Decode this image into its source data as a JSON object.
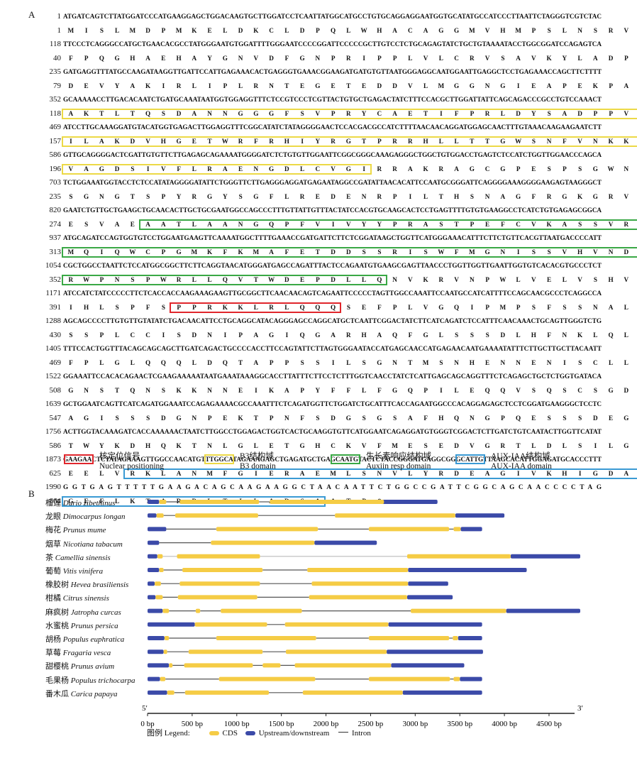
{
  "panel_a": {
    "label": "A",
    "rows": [
      {
        "num": "1",
        "type": "dna",
        "text": "ATGATCAGTCTTATGGATCCCATGAAGGAGCTGGACAAGTGCTTGGATCCTCAATTATGGCATGCCTGTGCAGGAGGAATGGTGCATATGCCATCCCTTAATTCTAGGGTCGTCTAC"
      },
      {
        "num": "1",
        "type": "aa",
        "text": "M I S L M D P M K E L D K C L D P Q L W H A C A G G M V H M P S L N S R V V Y"
      },
      {
        "num": "118",
        "type": "dna",
        "text": "TTCCCTCAGGGCCATGCTGAACACGCCTATGGGAATGTGGATTTTGGGAATCCCCGGATTCCCCCGCTTGTCCTCTGCAGAGTATCTGCTGTAAAATACCTGGCGGATCCAGAGTCA"
      },
      {
        "num": "40",
        "type": "aa",
        "text": "F P Q G H A E H A Y G N V D F G N P R I P P L V L C R V S A V K Y L A D P E S"
      },
      {
        "num": "235",
        "type": "dna",
        "text": "GATGAGGTTTATGCCAAGATAAGGTTGATTCCATTGAGAAACACTGAGGGTGAAACGGAAGATGATGTGTTAATGGGAGGCAATGGAATTGAGGCTCCTGAGAAACCAGCTTCTTTT"
      },
      {
        "num": "79",
        "type": "aa",
        "text": "D E V Y A K I R L I P L R N T E G E T E D D V L M G G N G I E A P E K P A S F"
      },
      {
        "num": "352",
        "type": "dna",
        "text": "GCAAAAACCTTGACACAATCTGATGCAAATAATGGTGGAGGTTTCTCCGTCCCTCGTTACTGTGCTGAGACTATCTTTCCACGCTTGGATTATTCAGCAGACCCGCCTGTCCAAACT"
      },
      {
        "num": "118",
        "type": "aa",
        "text": "A K T L T Q S D A N N G G G F S V P R Y C A E T I F P R L D Y S A D P P V Q T"
      },
      {
        "num": "469",
        "type": "dna",
        "text": "ATCCTTGCAAAGGATGTACATGGTGAGACTTGGAGGTTTCGGCATATCTATAGGGGAACTCCACGACGCCATCTTTTAACAACAGGATGGAGCAACTTTGTAAACAAGAAGAATCTT"
      },
      {
        "num": "157",
        "type": "aa",
        "text": "I L A K D V H G E T W R F R H I Y R G T P R R H L L T T G W S N F V N K K N L"
      },
      {
        "num": "586",
        "type": "dna",
        "text": "GTTGCAGGGGACTCGATTGTGTTCTTGAGAGCAGAAAATGGGGATCTCTGTGTTGGAATTCGGCGGGCAAAGAGGGCTGGCTGTGGACCTGAGTCTCCATCTGGTTGGAACCCAGCA"
      },
      {
        "num": "196",
        "type": "aa",
        "text": "V A G D S I V F L R A E N G D L C V G I R R A K R A G C G P E S P S G W N P A"
      },
      {
        "num": "703",
        "type": "dna",
        "text": "TCTGGAAATGGTACCTCTCCATATAGGGGATATTCTGGGTTCTTGAGGGAGGATGAGAATAGGCCGATATTAACACATTCCAATGCGGGATTCAGGGGAAAGGGGAAGAGTAAGGGCT"
      },
      {
        "num": "235",
        "type": "aa",
        "text": "S G N G T S P Y R G Y S G F L R E D E N R P I L T H S N A G F R G K G R V R A"
      },
      {
        "num": "820",
        "type": "dna",
        "text": "GAATCTGTTGCTGAAGCTGCAACACTTGCTGCGAATGGCCAGCCCTTTGTTATTGTTTACTATCCACGTGCAAGCACTCCTGAGTTTTGTGTGAAGGCCTCATCTGTGAGAGCGGCA"
      },
      {
        "num": "274",
        "type": "aa",
        "text": "E S V A E A A T L A A N G Q P F V I V Y Y P R A S T P E F C V K A S S V R A A"
      },
      {
        "num": "937",
        "type": "dna",
        "text": "ATGCAGATCCAGTGGTGTCCTGGAATGAAGTTCAAAATGGCTTTTGAAACCGATGATTCTTCTCGGATAAGCTGGTTCATGGGAAACATTTCTTCTGTTCACGTTAATGACCCCATT"
      },
      {
        "num": "313",
        "type": "aa",
        "text": "M Q I Q W C P G M K F K M A F E T D D S S R I S W F M G N I S S V H V N D P I"
      },
      {
        "num": "1054",
        "type": "dna",
        "text": "CGCTGGCCTAATTCTCCATGGCGGCTTCTTCAGGTAACATGGGATGAGCCAGATTTACTCCAGAATGTGAAGCGAGTTAACCCTGGTTGGTTGAATTGGTGTCACACGTGCCCTCT"
      },
      {
        "num": "352",
        "type": "aa",
        "text": "R W P N S P W R L L Q V T W D E P D L L Q N V K R V N P W L V E L V S H V P S"
      },
      {
        "num": "1171",
        "type": "dna",
        "text": "ATCCATCTATCCCCCTTCTCACCACCAAGAAAGAAGTTGCGGCTTCAACAACAGTCAGAATTCCCCCTAGTTGGCCAAATTCCAATGCCATCATTTTCCAGCAACGCCCTCAGGCCA"
      },
      {
        "num": "391",
        "type": "aa",
        "text": "I H L S P F S P P R K K L R L Q Q Q S E F P L V G Q I P M P S F S S N A L R P"
      },
      {
        "num": "1288",
        "type": "dna",
        "text": "AGCAGCCCCTTGTGTTGTATATCTGACAACATTCCTGCAGGCATACAGGGAGCCAGGCATGCTCAATTCGGACTATCTTCATCAGATCTCCATTTCAACAAACTGCAGTTGGGTCTG"
      },
      {
        "num": "430",
        "type": "aa",
        "text": "S S P L C C I S D N I P A G I Q G A R H A Q F G L S S S D L H F N K L Q L G L"
      },
      {
        "num": "1405",
        "type": "dna",
        "text": "TTTCCACTGGTTTACAGCAGCAGCTTGATCAGACTGCCCCACCTTCCAGTATTCTTAGTGGGAATACCATGAGCAACCATGAGAACAATGAAAATATTTCTTGCTTGCTTACAATT"
      },
      {
        "num": "469",
        "type": "aa",
        "text": "F P L G L Q Q Q L D Q T A P P S S I L S G N T M S N H E N N E N I S C L L T I"
      },
      {
        "num": "1522",
        "type": "dna",
        "text": "GGAAATTCCACACAGAACTCGAAGAAAAATAATGAAATAAAGGCACCTTATTTCTTCCTCTTTGGTCAACCTATCTCATTGAGCAGCAGGTTTCTCAGAGCTGCTCTGGTGATACA"
      },
      {
        "num": "508",
        "type": "aa",
        "text": "G N S T Q N S K K N N E I K A P Y F F L F G Q P I L E Q Q V S Q S C S G D T"
      },
      {
        "num": "1639",
        "type": "dna",
        "text": "GCTGGAATCAGTTCATCAGATGGAAATCCAGAGAAAACGCCAAATTTCTCAGATGGTTCTGGATCTGCATTTCACCAGAATGGCCCACAGGAGAGCTCCTCGGATGAAGGGCTCCTC"
      },
      {
        "num": "547",
        "type": "aa",
        "text": "A G I S S S D G N P E K T P N F S D G S G S A F H Q N G P Q E S S S D E G L L"
      },
      {
        "num": "1756",
        "type": "dna",
        "text": "ACTTGGTACAAAGATCACCAAAAAACTAATCTTGGCCTGGAGACTGGTCACTGCAAGGTGTTCATGGAATCAGAGGATGTGGGTCGGACTCTTGATCTGTCAATACTTGGTTCATAT"
      },
      {
        "num": "586",
        "type": "aa",
        "text": "T W Y K D H Q K T N L G L E T G H C K V F M E S E D V G R T L D L S I L G S Y"
      },
      {
        "num": "1873",
        "type": "dna",
        "text": "GAAGAACTCTATAGAAAGTTGGCCAACATGTTTGGCATAGAAAGAGCTGAGATGCTGAGCAATGTACTCTACCGGGATGAGGCGGGCATTGTTAAGCACATTGGAGATGCACCCTTT"
      },
      {
        "num": "625",
        "type": "aa",
        "text": "E E L V R K L A N M F G I E R A E M L S N V L Y R D E A G I V K H I G D A P F"
      },
      {
        "num": "1990",
        "type": "dna",
        "text": "GGTGAGTTTTTGAAGACAGCAAGAAGGCTAACAATTCTGGCCGATTCGGCAGCAACCCCTAG"
      },
      {
        "num": "664",
        "type": "aa",
        "text": "G E F L K T A R R L T I L A D S A A T P *"
      }
    ],
    "legend": [
      {
        "cn": "核定位信号",
        "en": "Nuclear positioning",
        "color": "#e0262c"
      },
      {
        "cn": "B3结构域",
        "en": "B3 domain",
        "color": "#ecd946"
      },
      {
        "cn": "生长素响应结构域",
        "en": "Auxiin resp domain",
        "color": "#3aa845"
      },
      {
        "cn": "AUX-IAA结构域",
        "en": "AUX-IAA domain",
        "color": "#3a9ad4"
      }
    ]
  },
  "panel_b": {
    "label": "B",
    "axis": {
      "ticks": [
        "0 bp",
        "500 bp",
        "1000 bp",
        "1500 bp",
        "2000 bp",
        "2500 bp",
        "3000 bp",
        "3500 bp",
        "4000 bp",
        "4500 bp"
      ],
      "tick_values": [
        0,
        500,
        1000,
        1500,
        2000,
        2500,
        3000,
        3500,
        4000,
        4500
      ],
      "max": 4850,
      "left_end": "5′",
      "right_end": "3′"
    },
    "legend": {
      "title": "图例 Legend:",
      "cds": "CDS",
      "utr": "Upstream/downstream",
      "intron": "Intron"
    },
    "colors": {
      "cds": "#f5cc45",
      "utr": "#3b4aa8",
      "intron": "#555555"
    },
    "genes": [
      {
        "cn": "榴莲",
        "latin": "Durio zibethinus",
        "utr": [
          [
            0,
            130
          ],
          [
            1700,
            3250
          ]
        ],
        "cds": [
          [
            130,
            210
          ],
          [
            360,
            1250
          ],
          [
            1370,
            2650
          ]
        ],
        "introns": [
          [
            210,
            360
          ],
          [
            1250,
            1370
          ]
        ],
        "intron_color": "#555555"
      },
      {
        "cn": "龙眼",
        "latin": "Dimocarpus longan",
        "utr": [
          [
            0,
            100
          ],
          [
            3450,
            4000
          ]
        ],
        "cds": [
          [
            100,
            180
          ],
          [
            310,
            1240
          ],
          [
            2100,
            3450
          ]
        ],
        "introns": [
          [
            180,
            310
          ],
          [
            1240,
            2100
          ]
        ],
        "intron_color": "#555555"
      },
      {
        "cn": "梅花",
        "latin": "Prunus mume",
        "utr": [
          [
            0,
            210
          ],
          [
            3510,
            3750
          ]
        ],
        "cds": [
          [
            770,
            1910
          ],
          [
            2480,
            3380
          ],
          [
            3430,
            3510
          ]
        ],
        "introns": [
          [
            210,
            770
          ],
          [
            1910,
            2480
          ],
          [
            3380,
            3430
          ]
        ],
        "intron_color": "#555555"
      },
      {
        "cn": "烟草",
        "latin": "Nicotiana tabacum",
        "utr": [
          [
            0,
            130
          ],
          [
            1870,
            2570
          ]
        ],
        "cds": [
          [
            710,
            1870
          ]
        ],
        "introns": [
          [
            130,
            710
          ]
        ],
        "intron_color": "#555555"
      },
      {
        "cn": "茶",
        "latin": "Camellia sinensis",
        "utr": [
          [
            0,
            110
          ],
          [
            4070,
            4850
          ]
        ],
        "cds": [
          [
            110,
            170
          ],
          [
            330,
            1260
          ],
          [
            2910,
            4070
          ]
        ],
        "introns": [
          [
            170,
            330
          ],
          [
            1260,
            2910
          ]
        ],
        "intron_color": "#bbbbbb"
      },
      {
        "cn": "葡萄",
        "latin": "Vitis vinifera",
        "utr": [
          [
            0,
            130
          ],
          [
            2920,
            4250
          ]
        ],
        "cds": [
          [
            130,
            180
          ],
          [
            390,
            1290
          ],
          [
            1790,
            2920
          ]
        ],
        "introns": [
          [
            180,
            390
          ],
          [
            1290,
            1790
          ]
        ],
        "intron_color": "#555555"
      },
      {
        "cn": "橡胶树",
        "latin": "Hevea brasiliensis",
        "utr": [
          [
            0,
            80
          ],
          [
            2920,
            3370
          ]
        ],
        "cds": [
          [
            80,
            150
          ],
          [
            360,
            1260
          ],
          [
            1840,
            2920
          ]
        ],
        "introns": [
          [
            150,
            360
          ],
          [
            1260,
            1840
          ]
        ],
        "intron_color": "#555555"
      },
      {
        "cn": "柑橘",
        "latin": "Citrus sinensis",
        "utr": [
          [
            0,
            90
          ],
          [
            2910,
            3420
          ]
        ],
        "cds": [
          [
            90,
            170
          ],
          [
            340,
            1230
          ],
          [
            1810,
            2910
          ]
        ],
        "introns": [
          [
            170,
            340
          ],
          [
            1230,
            1810
          ]
        ],
        "intron_color": "#555555"
      },
      {
        "cn": "麻疯树",
        "latin": "Jatropha curcas",
        "utr": [
          [
            0,
            170
          ],
          [
            4020,
            4850
          ]
        ],
        "cds": [
          [
            170,
            240
          ],
          [
            540,
            590
          ],
          [
            820,
            1730
          ],
          [
            2950,
            4020
          ]
        ],
        "introns": [
          [
            240,
            540
          ],
          [
            590,
            820
          ],
          [
            1730,
            2950
          ]
        ],
        "intron_color": "#555555"
      },
      {
        "cn": "水蜜桃",
        "latin": "Prunus persica",
        "utr": [
          [
            0,
            530
          ],
          [
            2700,
            3750
          ]
        ],
        "cds": [
          [
            530,
            1340
          ],
          [
            1540,
            2700
          ]
        ],
        "introns": [
          [
            1340,
            1540
          ]
        ],
        "intron_color": "#555555"
      },
      {
        "cn": "胡杨",
        "latin": "Populus euphratica",
        "utr": [
          [
            0,
            190
          ],
          [
            3480,
            3750
          ]
        ],
        "cds": [
          [
            190,
            240
          ],
          [
            770,
            1890
          ],
          [
            2480,
            3380
          ],
          [
            3420,
            3480
          ]
        ],
        "introns": [
          [
            240,
            770
          ],
          [
            1890,
            2480
          ],
          [
            3380,
            3420
          ]
        ],
        "intron_color": "#555555"
      },
      {
        "cn": "草莓",
        "latin": "Fragaria vesca",
        "utr": [
          [
            0,
            180
          ],
          [
            2680,
            3760
          ]
        ],
        "cds": [
          [
            180,
            220
          ],
          [
            460,
            1290
          ],
          [
            1550,
            2680
          ]
        ],
        "introns": [
          [
            220,
            460
          ],
          [
            1290,
            1550
          ]
        ],
        "intron_color": "#555555"
      },
      {
        "cn": "甜樱桃",
        "latin": "Prunus avium",
        "utr": [
          [
            0,
            240
          ],
          [
            2730,
            3550
          ]
        ],
        "cds": [
          [
            240,
            280
          ],
          [
            410,
            1180
          ],
          [
            1290,
            1490
          ],
          [
            1650,
            2730
          ]
        ],
        "introns": [
          [
            280,
            410
          ],
          [
            1180,
            1290
          ],
          [
            1490,
            1650
          ]
        ],
        "intron_color": "#555555"
      },
      {
        "cn": "毛果杨",
        "latin": "Populus trichocarpa",
        "utr": [
          [
            0,
            140
          ],
          [
            3500,
            3750
          ]
        ],
        "cds": [
          [
            140,
            200
          ],
          [
            800,
            1880
          ],
          [
            2480,
            3390
          ],
          [
            3430,
            3500
          ]
        ],
        "introns": [
          [
            200,
            800
          ],
          [
            1880,
            2480
          ],
          [
            3390,
            3430
          ]
        ],
        "intron_color": "#555555"
      },
      {
        "cn": "番木瓜",
        "latin": "Carica papaya",
        "utr": [
          [
            0,
            220
          ],
          [
            2860,
            3750
          ]
        ],
        "cds": [
          [
            220,
            300
          ],
          [
            420,
            1360
          ],
          [
            1740,
            2860
          ]
        ],
        "introns": [
          [
            300,
            420
          ],
          [
            1360,
            1740
          ]
        ],
        "intron_color": "#555555"
      }
    ]
  }
}
